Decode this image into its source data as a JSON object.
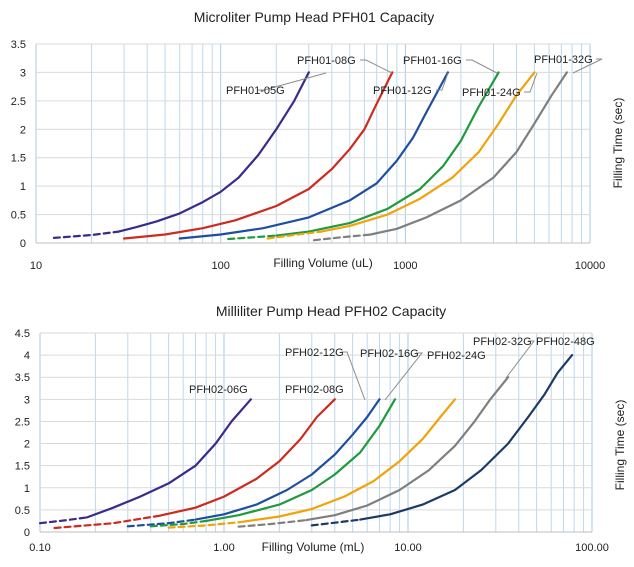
{
  "chart_data": [
    {
      "type": "line",
      "title": "Microliter Pump Head PFH01 Capacity",
      "xlabel": "Filling Volume   (uL)",
      "ylabel": "Filling Time   (sec)",
      "xscale": "log",
      "xlim": [
        10,
        10000
      ],
      "ylim": [
        0,
        3.5
      ],
      "xticks": [
        10,
        100,
        1000,
        10000
      ],
      "xtick_labels": [
        "10",
        "100",
        "1000",
        "10000"
      ],
      "yticks": [
        0,
        0.5,
        1,
        1.5,
        2,
        2.5,
        3,
        3.5
      ],
      "ytick_labels": [
        "0",
        "0.5",
        "1",
        "1.5",
        "2",
        "2.5",
        "3",
        "3.5"
      ],
      "legend": "inline labels",
      "series": [
        {
          "name": "PFH01-05G",
          "color": "#3b2a8c",
          "dashed": [
            [
              12.5,
              0.09
            ],
            [
              20,
              0.14
            ],
            [
              28,
              0.2
            ]
          ],
          "solid": [
            [
              28,
              0.2
            ],
            [
              35,
              0.28
            ],
            [
              45,
              0.38
            ],
            [
              60,
              0.52
            ],
            [
              80,
              0.72
            ],
            [
              100,
              0.9
            ],
            [
              125,
              1.15
            ],
            [
              160,
              1.55
            ],
            [
              200,
              2.0
            ],
            [
              250,
              2.5
            ],
            [
              300,
              3.0
            ]
          ]
        },
        {
          "name": "PFH01-08G",
          "color": "#cc2b1d",
          "dashed": [],
          "solid": [
            [
              30,
              0.08
            ],
            [
              50,
              0.15
            ],
            [
              80,
              0.26
            ],
            [
              120,
              0.4
            ],
            [
              200,
              0.65
            ],
            [
              300,
              0.95
            ],
            [
              400,
              1.3
            ],
            [
              500,
              1.65
            ],
            [
              600,
              2.0
            ],
            [
              700,
              2.45
            ],
            [
              850,
              3.0
            ]
          ]
        },
        {
          "name": "PFH01-12G",
          "color": "#1f4e9e",
          "dashed": [],
          "solid": [
            [
              60,
              0.08
            ],
            [
              100,
              0.15
            ],
            [
              170,
              0.26
            ],
            [
              300,
              0.45
            ],
            [
              500,
              0.75
            ],
            [
              700,
              1.05
            ],
            [
              900,
              1.45
            ],
            [
              1100,
              1.85
            ],
            [
              1300,
              2.3
            ],
            [
              1700,
              3.0
            ]
          ]
        },
        {
          "name": "PFH01-16G",
          "color": "#1f9a3c",
          "dashed": [
            [
              110,
              0.07
            ],
            [
              150,
              0.1
            ],
            [
              200,
              0.13
            ]
          ],
          "solid": [
            [
              200,
              0.13
            ],
            [
              300,
              0.2
            ],
            [
              500,
              0.35
            ],
            [
              800,
              0.6
            ],
            [
              1200,
              0.95
            ],
            [
              1600,
              1.35
            ],
            [
              2000,
              1.8
            ],
            [
              2500,
              2.4
            ],
            [
              3200,
              3.0
            ]
          ]
        },
        {
          "name": "PFH01-24G",
          "color": "#f0a30a",
          "dashed": [
            [
              180,
              0.08
            ],
            [
              250,
              0.14
            ],
            [
              350,
              0.2
            ]
          ],
          "solid": [
            [
              350,
              0.2
            ],
            [
              500,
              0.3
            ],
            [
              800,
              0.5
            ],
            [
              1200,
              0.78
            ],
            [
              1800,
              1.15
            ],
            [
              2500,
              1.6
            ],
            [
              3200,
              2.1
            ],
            [
              4000,
              2.6
            ],
            [
              5000,
              3.0
            ]
          ]
        },
        {
          "name": "PFH01-32G",
          "color": "#7f7f7f",
          "dashed": [
            [
              320,
              0.05
            ],
            [
              450,
              0.1
            ],
            [
              650,
              0.15
            ]
          ],
          "solid": [
            [
              650,
              0.15
            ],
            [
              900,
              0.25
            ],
            [
              1300,
              0.45
            ],
            [
              2000,
              0.75
            ],
            [
              3000,
              1.15
            ],
            [
              4000,
              1.6
            ],
            [
              5000,
              2.1
            ],
            [
              6200,
              2.6
            ],
            [
              7500,
              3.0
            ]
          ]
        }
      ]
    },
    {
      "type": "line",
      "title": "Milliliter Pump Head PFH02 Capacity",
      "xlabel": "Filling Volume   (mL)",
      "ylabel": "Filling Time   (sec)",
      "xscale": "log",
      "xlim": [
        0.1,
        100
      ],
      "ylim": [
        0,
        4.5
      ],
      "xticks": [
        0.1,
        1,
        10,
        100
      ],
      "xtick_labels": [
        "0.10",
        "1.00",
        "10.00",
        "100.00"
      ],
      "yticks": [
        0,
        0.5,
        1,
        1.5,
        2,
        2.5,
        3,
        3.5,
        4,
        4.5
      ],
      "ytick_labels": [
        "0",
        "0.5",
        "1",
        "1.5",
        "2",
        "2.5",
        "3",
        "3.5",
        "4",
        "4.5"
      ],
      "legend": "inline labels",
      "series": [
        {
          "name": "PFH02-06G",
          "color": "#3b2a8c",
          "dashed": [
            [
              0.1,
              0.2
            ],
            [
              0.14,
              0.27
            ],
            [
              0.18,
              0.33
            ]
          ],
          "solid": [
            [
              0.18,
              0.33
            ],
            [
              0.25,
              0.55
            ],
            [
              0.35,
              0.8
            ],
            [
              0.5,
              1.1
            ],
            [
              0.7,
              1.5
            ],
            [
              0.9,
              2.0
            ],
            [
              1.1,
              2.5
            ],
            [
              1.4,
              3.0
            ]
          ]
        },
        {
          "name": "PFH02-08G",
          "color": "#cc2b1d",
          "dashed": [
            [
              0.12,
              0.09
            ],
            [
              0.25,
              0.2
            ],
            [
              0.45,
              0.37
            ]
          ],
          "solid": [
            [
              0.45,
              0.37
            ],
            [
              0.7,
              0.55
            ],
            [
              1.0,
              0.8
            ],
            [
              1.5,
              1.2
            ],
            [
              2.0,
              1.6
            ],
            [
              2.6,
              2.1
            ],
            [
              3.2,
              2.6
            ],
            [
              4.0,
              3.0
            ]
          ]
        },
        {
          "name": "PFH02-12G",
          "color": "#1f4e9e",
          "dashed": [
            [
              0.3,
              0.13
            ],
            [
              0.5,
              0.2
            ],
            [
              0.7,
              0.28
            ]
          ],
          "solid": [
            [
              0.7,
              0.28
            ],
            [
              1.0,
              0.4
            ],
            [
              1.5,
              0.62
            ],
            [
              2.2,
              0.95
            ],
            [
              3.0,
              1.3
            ],
            [
              4.0,
              1.75
            ],
            [
              5.0,
              2.2
            ],
            [
              6.0,
              2.6
            ],
            [
              7.0,
              3.0
            ]
          ]
        },
        {
          "name": "PFH02-16G",
          "color": "#1f9a3c",
          "dashed": [
            [
              0.4,
              0.13
            ],
            [
              0.6,
              0.18
            ],
            [
              0.8,
              0.25
            ]
          ],
          "solid": [
            [
              0.8,
              0.25
            ],
            [
              1.2,
              0.38
            ],
            [
              2.0,
              0.62
            ],
            [
              3.0,
              0.95
            ],
            [
              4.0,
              1.3
            ],
            [
              5.5,
              1.8
            ],
            [
              7.0,
              2.4
            ],
            [
              8.5,
              3.0
            ]
          ]
        },
        {
          "name": "PFH02-24G",
          "color": "#f0a30a",
          "dashed": [
            [
              0.5,
              0.1
            ],
            [
              0.8,
              0.15
            ],
            [
              1.2,
              0.22
            ]
          ],
          "solid": [
            [
              1.2,
              0.22
            ],
            [
              2.0,
              0.35
            ],
            [
              3.0,
              0.52
            ],
            [
              4.5,
              0.8
            ],
            [
              6.5,
              1.15
            ],
            [
              9.0,
              1.6
            ],
            [
              12.0,
              2.1
            ],
            [
              15.0,
              2.6
            ],
            [
              18.0,
              3.0
            ]
          ]
        },
        {
          "name": "PFH02-32G",
          "color": "#7f7f7f",
          "dashed": [
            [
              1.2,
              0.12
            ],
            [
              1.8,
              0.18
            ],
            [
              2.8,
              0.27
            ]
          ],
          "solid": [
            [
              2.8,
              0.27
            ],
            [
              4.0,
              0.38
            ],
            [
              6.0,
              0.6
            ],
            [
              9.0,
              0.95
            ],
            [
              13.0,
              1.4
            ],
            [
              18.0,
              1.95
            ],
            [
              23.0,
              2.5
            ],
            [
              28.0,
              3.0
            ],
            [
              35.0,
              3.5
            ]
          ]
        },
        {
          "name": "PFH02-48G",
          "color": "#1b3a66",
          "dashed": [
            [
              3.0,
              0.15
            ],
            [
              4.0,
              0.21
            ],
            [
              5.5,
              0.28
            ]
          ],
          "solid": [
            [
              5.5,
              0.28
            ],
            [
              8.0,
              0.4
            ],
            [
              12.0,
              0.62
            ],
            [
              18.0,
              0.95
            ],
            [
              25.0,
              1.4
            ],
            [
              35.0,
              2.0
            ],
            [
              45.0,
              2.6
            ],
            [
              55.0,
              3.1
            ],
            [
              65.0,
              3.6
            ],
            [
              78.0,
              4.0
            ]
          ]
        }
      ]
    }
  ]
}
